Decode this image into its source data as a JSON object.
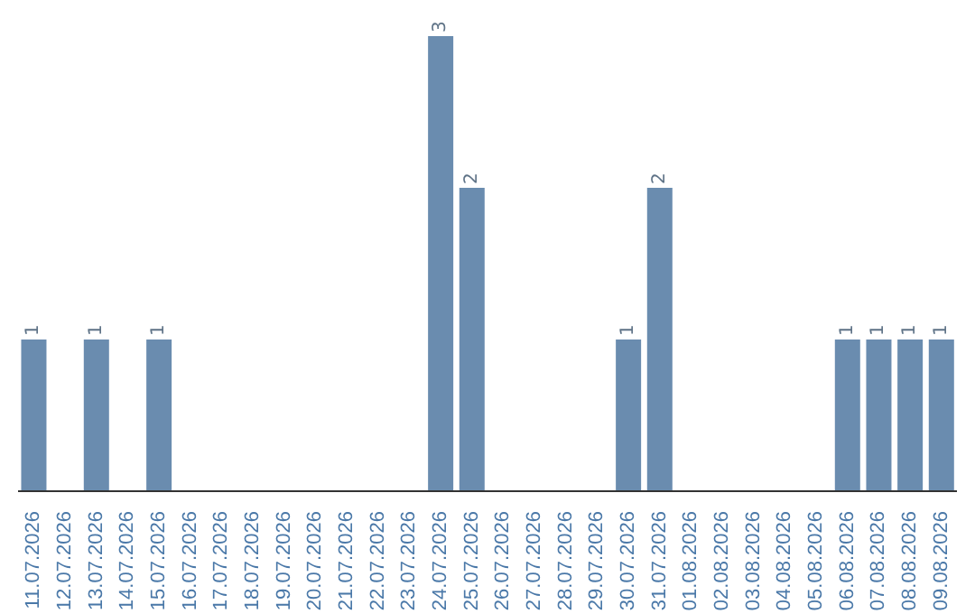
{
  "chart_data": {
    "type": "bar",
    "categories": [
      "11.07.2026",
      "12.07.2026",
      "13.07.2026",
      "14.07.2026",
      "15.07.2026",
      "16.07.2026",
      "17.07.2026",
      "18.07.2026",
      "19.07.2026",
      "20.07.2026",
      "21.07.2026",
      "22.07.2026",
      "23.07.2026",
      "24.07.2026",
      "25.07.2026",
      "26.07.2026",
      "27.07.2026",
      "28.07.2026",
      "29.07.2026",
      "30.07.2026",
      "31.07.2026",
      "01.08.2026",
      "02.08.2026",
      "03.08.2026",
      "04.08.2026",
      "05.08.2026",
      "06.08.2026",
      "07.08.2026",
      "08.08.2026",
      "09.08.2026"
    ],
    "values": [
      1,
      0,
      1,
      0,
      1,
      0,
      0,
      0,
      0,
      0,
      0,
      0,
      0,
      3,
      2,
      0,
      0,
      0,
      0,
      1,
      2,
      0,
      0,
      0,
      0,
      0,
      1,
      1,
      1,
      1
    ],
    "value_labels": [
      "1",
      null,
      "1",
      null,
      "1",
      null,
      null,
      null,
      null,
      null,
      null,
      null,
      null,
      "3",
      "2",
      null,
      null,
      null,
      null,
      "1",
      "2",
      null,
      null,
      null,
      null,
      null,
      "1",
      "1",
      "1",
      "1"
    ],
    "color": "#6a8caf",
    "ylim": [
      0,
      3
    ]
  }
}
